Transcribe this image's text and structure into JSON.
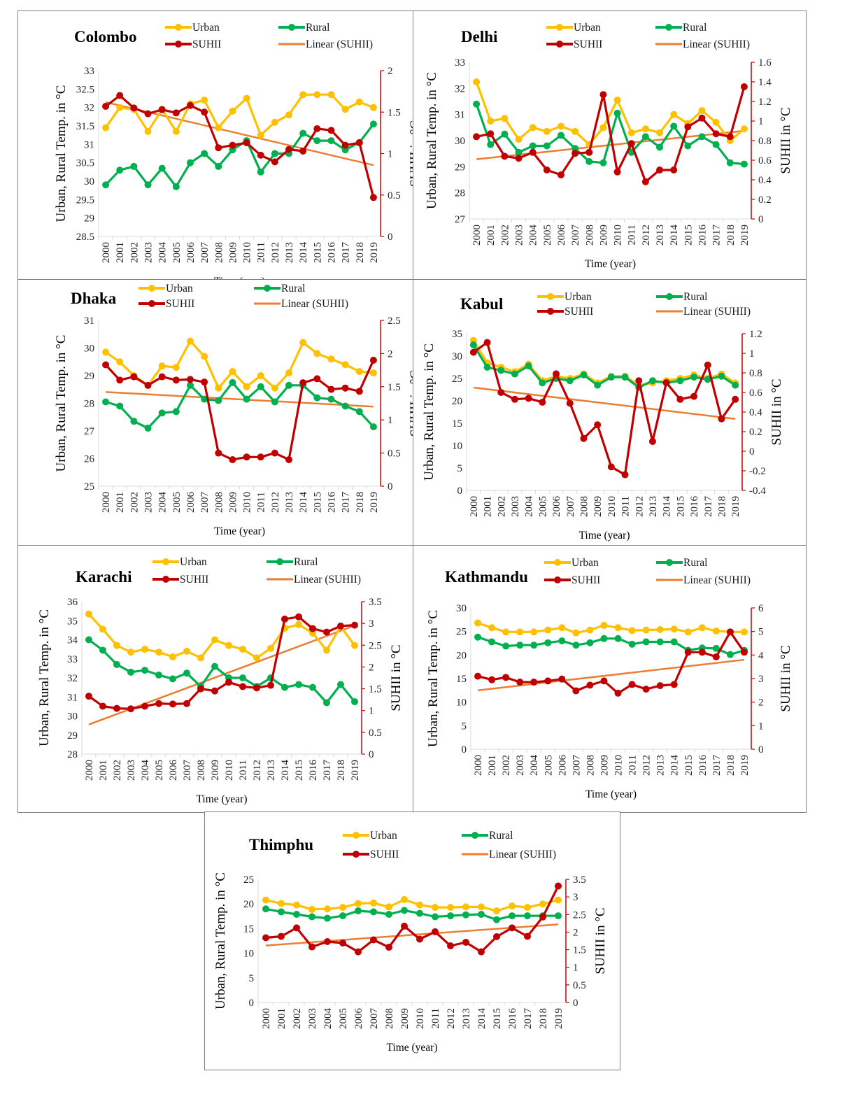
{
  "colors": {
    "urban": "#FFC000",
    "rural": "#00B050",
    "suhii": "#C00000",
    "trend": "#ED7D31",
    "axis": "#d9d9d9",
    "right_axis": "#C00000"
  },
  "legend": {
    "urban": "Urban",
    "rural": "Rural",
    "suhii": "SUHII",
    "trend": "Linear (SUHII)"
  },
  "labels": {
    "xlabel": "Time (year)",
    "ylabel_left": "Urban, Rural Temp. in °C",
    "ylabel_right": "SUHII in °C"
  },
  "years": [
    "2000",
    "2001",
    "2002",
    "2003",
    "2004",
    "2005",
    "2006",
    "2007",
    "2008",
    "2009",
    "2010",
    "2011",
    "2012",
    "2013",
    "2014",
    "2015",
    "2016",
    "2017",
    "2018",
    "2019"
  ],
  "chart_data": [
    {
      "type": "line",
      "title": "Colombo",
      "left_ticks": [
        "28.5",
        "29",
        "29.5",
        "30",
        "30.5",
        "31",
        "31.5",
        "32",
        "32.5",
        "33"
      ],
      "left_range": [
        28.5,
        33
      ],
      "right_ticks": [
        "0",
        "0.5",
        "1",
        "1.5",
        "2"
      ],
      "right_range": [
        0,
        2
      ],
      "series": [
        {
          "name": "Urban",
          "axis": "left",
          "values": [
            31.45,
            32.0,
            31.95,
            31.35,
            31.95,
            31.35,
            32.1,
            32.2,
            31.45,
            31.9,
            32.25,
            31.25,
            31.6,
            31.8,
            32.35,
            32.35,
            32.35,
            31.95,
            32.15,
            32.0
          ]
        },
        {
          "name": "Rural",
          "axis": "left",
          "values": [
            29.9,
            30.3,
            30.4,
            29.9,
            30.35,
            29.85,
            30.5,
            30.75,
            30.4,
            30.85,
            31.1,
            30.25,
            30.75,
            30.75,
            31.3,
            31.1,
            31.1,
            30.85,
            31.05,
            31.55
          ]
        },
        {
          "name": "SUHII",
          "axis": "right",
          "values": [
            1.57,
            1.7,
            1.55,
            1.48,
            1.53,
            1.49,
            1.58,
            1.5,
            1.07,
            1.1,
            1.13,
            0.98,
            0.9,
            1.05,
            1.03,
            1.3,
            1.28,
            1.1,
            1.13,
            0.47
          ]
        },
        {
          "name": "Linear (SUHII)",
          "axis": "right",
          "values": [
            1.62,
            0.86
          ]
        }
      ]
    },
    {
      "type": "line",
      "title": "Delhi",
      "left_ticks": [
        "27",
        "28",
        "29",
        "30",
        "31",
        "32",
        "33"
      ],
      "left_range": [
        27,
        33
      ],
      "right_ticks": [
        "0",
        "0.2",
        "0.4",
        "0.6",
        "0.8",
        "1",
        "1.2",
        "1.4",
        "1.6"
      ],
      "right_range": [
        0,
        1.6
      ],
      "series": [
        {
          "name": "Urban",
          "axis": "left",
          "values": [
            32.25,
            30.75,
            30.85,
            30.05,
            30.5,
            30.35,
            30.55,
            30.35,
            29.85,
            30.5,
            31.55,
            30.3,
            30.45,
            30.3,
            31.0,
            30.65,
            31.15,
            30.7,
            30.0,
            30.45
          ]
        },
        {
          "name": "Rural",
          "axis": "left",
          "values": [
            31.4,
            29.85,
            30.25,
            29.55,
            29.8,
            29.8,
            30.2,
            29.7,
            29.2,
            29.15,
            31.05,
            29.55,
            30.15,
            29.75,
            30.55,
            29.8,
            30.15,
            29.85,
            29.15,
            29.1
          ]
        },
        {
          "name": "SUHII",
          "axis": "right",
          "values": [
            0.84,
            0.87,
            0.64,
            0.62,
            0.68,
            0.5,
            0.45,
            0.67,
            0.68,
            1.27,
            0.48,
            0.77,
            0.38,
            0.5,
            0.5,
            0.94,
            1.03,
            0.87,
            0.84,
            1.35
          ]
        },
        {
          "name": "Linear (SUHII)",
          "axis": "right",
          "values": [
            0.61,
            0.9
          ]
        }
      ]
    },
    {
      "type": "line",
      "title": "Dhaka",
      "left_ticks": [
        "25",
        "26",
        "27",
        "28",
        "29",
        "30",
        "31"
      ],
      "left_range": [
        25,
        31
      ],
      "right_ticks": [
        "0",
        "0.5",
        "1",
        "1.5",
        "2",
        "2.5"
      ],
      "right_range": [
        0,
        2.5
      ],
      "series": [
        {
          "name": "Urban",
          "axis": "left",
          "values": [
            29.85,
            29.5,
            29.0,
            28.65,
            29.35,
            29.3,
            30.25,
            29.7,
            28.55,
            29.15,
            28.6,
            29.0,
            28.55,
            29.1,
            30.2,
            29.8,
            29.6,
            29.4,
            29.15,
            29.1
          ]
        },
        {
          "name": "Rural",
          "axis": "left",
          "values": [
            28.05,
            27.9,
            27.35,
            27.1,
            27.65,
            27.7,
            28.65,
            28.15,
            28.1,
            28.75,
            28.15,
            28.6,
            28.05,
            28.65,
            28.65,
            28.2,
            28.15,
            27.9,
            27.7,
            27.15
          ]
        },
        {
          "name": "SUHII",
          "axis": "right",
          "values": [
            1.83,
            1.6,
            1.65,
            1.52,
            1.65,
            1.6,
            1.61,
            1.57,
            0.5,
            0.4,
            0.44,
            0.44,
            0.5,
            0.4,
            1.56,
            1.62,
            1.46,
            1.48,
            1.43,
            1.9
          ]
        },
        {
          "name": "Linear (SUHII)",
          "axis": "right",
          "values": [
            1.42,
            1.2
          ]
        }
      ]
    },
    {
      "type": "line",
      "title": "Kabul",
      "left_ticks": [
        "0",
        "5",
        "10",
        "15",
        "20",
        "25",
        "30",
        "35"
      ],
      "left_range": [
        0,
        35
      ],
      "right_ticks": [
        "-0.4",
        "-0.2",
        "0",
        "0.2",
        "0.4",
        "0.6",
        "0.8",
        "1",
        "1.2"
      ],
      "right_range": [
        -0.4,
        1.2
      ],
      "series": [
        {
          "name": "Urban",
          "axis": "left",
          "values": [
            33.5,
            28.5,
            27.5,
            26.5,
            28.2,
            24.5,
            25.5,
            25.0,
            26.0,
            24.0,
            25.5,
            25.5,
            23.5,
            24.0,
            24.5,
            25.0,
            25.8,
            25.0,
            26.0,
            24.0
          ]
        },
        {
          "name": "Rural",
          "axis": "left",
          "values": [
            32.5,
            27.5,
            26.8,
            26.0,
            27.8,
            24.0,
            25.0,
            24.5,
            25.8,
            23.5,
            25.3,
            25.3,
            23.0,
            24.5,
            24.0,
            24.5,
            25.3,
            24.8,
            25.5,
            23.5
          ]
        },
        {
          "name": "SUHII",
          "axis": "right",
          "values": [
            1.01,
            1.11,
            0.6,
            0.53,
            0.54,
            0.5,
            0.79,
            0.49,
            0.13,
            0.27,
            -0.16,
            -0.24,
            0.72,
            0.1,
            0.7,
            0.53,
            0.56,
            0.88,
            0.33,
            0.53
          ]
        },
        {
          "name": "Linear (SUHII)",
          "axis": "right",
          "values": [
            0.65,
            0.33
          ]
        }
      ]
    },
    {
      "type": "line",
      "title": "Karachi",
      "left_ticks": [
        "28",
        "29",
        "30",
        "31",
        "32",
        "33",
        "34",
        "35",
        "36"
      ],
      "left_range": [
        28,
        36
      ],
      "right_ticks": [
        "0",
        "0.5",
        "1",
        "1.5",
        "2",
        "2.5",
        "3",
        "3.5"
      ],
      "right_range": [
        0,
        3.5
      ],
      "series": [
        {
          "name": "Urban",
          "axis": "left",
          "values": [
            35.35,
            34.55,
            33.7,
            33.35,
            33.5,
            33.35,
            33.1,
            33.4,
            33.05,
            34.0,
            33.7,
            33.5,
            33.05,
            33.55,
            34.6,
            34.8,
            34.35,
            33.45,
            34.7,
            33.7
          ]
        },
        {
          "name": "Rural",
          "axis": "left",
          "values": [
            34.0,
            33.45,
            32.7,
            32.3,
            32.4,
            32.15,
            31.95,
            32.25,
            31.55,
            32.6,
            32.0,
            32.0,
            31.55,
            32.0,
            31.5,
            31.65,
            31.5,
            30.7,
            31.65,
            30.75
          ]
        },
        {
          "name": "SUHII",
          "axis": "right",
          "values": [
            1.33,
            1.1,
            1.05,
            1.04,
            1.1,
            1.16,
            1.15,
            1.16,
            1.5,
            1.45,
            1.65,
            1.55,
            1.52,
            1.58,
            3.1,
            3.15,
            2.88,
            2.8,
            2.94,
            2.96
          ]
        },
        {
          "name": "Linear (SUHII)",
          "axis": "right",
          "values": [
            0.68,
            2.95
          ]
        }
      ]
    },
    {
      "type": "line",
      "title": "Kathmandu",
      "left_ticks": [
        "0",
        "5",
        "10",
        "15",
        "20",
        "25",
        "30"
      ],
      "left_range": [
        0,
        30
      ],
      "right_ticks": [
        "0",
        "1",
        "2",
        "3",
        "4",
        "5",
        "6"
      ],
      "right_range": [
        0,
        6
      ],
      "series": [
        {
          "name": "Urban",
          "axis": "left",
          "values": [
            26.8,
            25.8,
            24.9,
            24.9,
            24.9,
            25.3,
            25.8,
            24.7,
            25.3,
            26.3,
            25.8,
            25.2,
            25.3,
            25.4,
            25.5,
            24.9,
            25.8,
            25.1,
            24.9,
            24.9
          ]
        },
        {
          "name": "Rural",
          "axis": "left",
          "values": [
            23.8,
            22.8,
            21.9,
            22.1,
            22.1,
            22.6,
            23.0,
            22.1,
            22.6,
            23.5,
            23.5,
            22.3,
            22.8,
            22.8,
            22.8,
            21.0,
            21.5,
            21.4,
            20.1,
            21.0
          ]
        },
        {
          "name": "SUHII",
          "axis": "right",
          "values": [
            3.1,
            2.95,
            3.05,
            2.85,
            2.85,
            2.9,
            2.98,
            2.48,
            2.72,
            2.9,
            2.38,
            2.75,
            2.55,
            2.7,
            2.75,
            4.12,
            4.12,
            3.92,
            4.98,
            4.12
          ]
        },
        {
          "name": "Linear (SUHII)",
          "axis": "right",
          "values": [
            2.5,
            3.8
          ]
        }
      ]
    },
    {
      "type": "line",
      "title": "Thimphu",
      "left_ticks": [
        "0",
        "5",
        "10",
        "15",
        "20",
        "25"
      ],
      "left_range": [
        0,
        25
      ],
      "right_ticks": [
        "0",
        "0.5",
        "1",
        "1.5",
        "2",
        "2.5",
        "3",
        "3.5"
      ],
      "right_range": [
        0,
        3.5
      ],
      "series": [
        {
          "name": "Urban",
          "axis": "left",
          "values": [
            20.8,
            20.1,
            19.8,
            18.9,
            19.0,
            19.3,
            20.1,
            20.2,
            19.4,
            20.9,
            19.8,
            19.3,
            19.3,
            19.4,
            19.4,
            18.6,
            19.6,
            19.3,
            20.0,
            20.8
          ]
        },
        {
          "name": "Rural",
          "axis": "left",
          "values": [
            19.0,
            18.4,
            17.9,
            17.4,
            17.1,
            17.6,
            18.6,
            18.4,
            17.9,
            18.7,
            18.1,
            17.4,
            17.6,
            17.8,
            17.9,
            16.8,
            17.6,
            17.6,
            17.6,
            17.6
          ]
        },
        {
          "name": "SUHII",
          "axis": "right",
          "values": [
            1.84,
            1.88,
            2.12,
            1.58,
            1.73,
            1.69,
            1.44,
            1.78,
            1.57,
            2.17,
            1.8,
            2.01,
            1.61,
            1.71,
            1.44,
            1.87,
            2.12,
            1.88,
            2.43,
            3.31
          ]
        },
        {
          "name": "Linear (SUHII)",
          "axis": "right",
          "values": [
            1.62,
            2.22
          ]
        }
      ]
    }
  ]
}
